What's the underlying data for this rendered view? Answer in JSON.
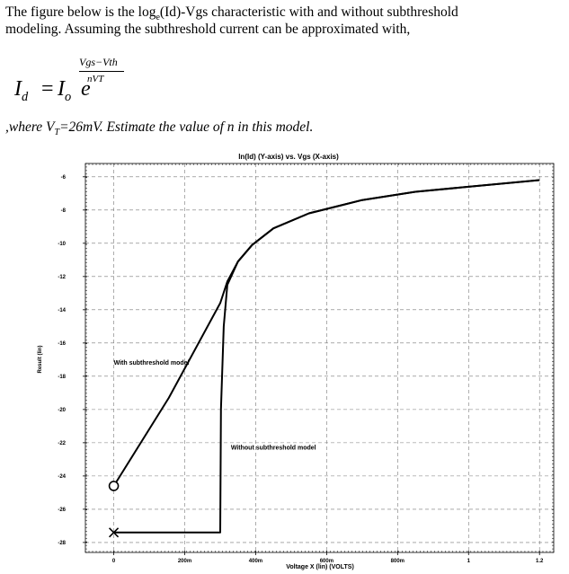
{
  "problem": {
    "line1_pre": "The figure below is the log",
    "line1_sub": "e",
    "line1_post": "(Id)-Vgs characteristic with and without subthreshold",
    "line2": "modeling. Assuming the subthreshold current can be approximated with,",
    "eq_lhs": "I",
    "eq_lhs_sub": "d",
    "eq_equals": "=",
    "eq_i": "I",
    "eq_i_sub": "o",
    "eq_e": "e",
    "eq_exp_num": "Vgs−Vth",
    "eq_exp_den": "nVT",
    "line3_pre": ",where V",
    "line3_sub": "T",
    "line3_post": "=26mV. Estimate the value of n in this model."
  },
  "chart_data": {
    "type": "line",
    "title": "ln(Id) (Y-axis) vs. Vgs (X-axis)",
    "xlabel": "Voltage X (lin) (VOLTS)",
    "ylabel": "Result (lin)",
    "xlim": [
      -0.08,
      1.24
    ],
    "ylim": [
      -28.6,
      -5.2
    ],
    "x_ticks": [
      {
        "value": 0,
        "label": "0"
      },
      {
        "value": 0.2,
        "label": "200m"
      },
      {
        "value": 0.4,
        "label": "400m"
      },
      {
        "value": 0.6,
        "label": "600m"
      },
      {
        "value": 0.8,
        "label": "800m"
      },
      {
        "value": 1.0,
        "label": "1"
      },
      {
        "value": 1.2,
        "label": "1.2"
      }
    ],
    "y_ticks": [
      {
        "value": -6,
        "label": "-6"
      },
      {
        "value": -8,
        "label": "-8"
      },
      {
        "value": -10,
        "label": "-10"
      },
      {
        "value": -12,
        "label": "-12"
      },
      {
        "value": -14,
        "label": "-14"
      },
      {
        "value": -16,
        "label": "-16"
      },
      {
        "value": -18,
        "label": "-18"
      },
      {
        "value": -20,
        "label": "-20"
      },
      {
        "value": -22,
        "label": "-22"
      },
      {
        "value": -24,
        "label": "-24"
      },
      {
        "value": -26,
        "label": "-26"
      },
      {
        "value": -28,
        "label": "-28"
      }
    ],
    "grid": true,
    "series": [
      {
        "name": "With subthreshold model",
        "marker": "circle",
        "x": [
          0,
          0.155,
          0.3,
          0.32,
          0.35,
          0.39,
          0.45,
          0.55,
          0.7,
          0.85,
          1.0,
          1.2
        ],
        "y": [
          -24.6,
          -19.3,
          -13.6,
          -12.3,
          -11.1,
          -10.1,
          -9.1,
          -8.2,
          -7.4,
          -6.9,
          -6.6,
          -6.2
        ]
      },
      {
        "name": "Without subthreshold model",
        "marker": "x",
        "x": [
          0,
          0.3,
          0.302,
          0.31,
          0.32,
          0.35,
          0.39,
          0.45,
          0.55,
          0.7,
          0.85,
          1.0,
          1.2
        ],
        "y": [
          -27.4,
          -27.4,
          -20.0,
          -15.0,
          -12.5,
          -11.1,
          -10.1,
          -9.1,
          -8.2,
          -7.4,
          -6.9,
          -6.6,
          -6.2
        ]
      }
    ],
    "annotations": [
      {
        "text": "With subthreshold model",
        "x": 0,
        "y": -17.3
      },
      {
        "text": "Without subthreshold model",
        "x": 0.33,
        "y": -22.4
      }
    ]
  }
}
